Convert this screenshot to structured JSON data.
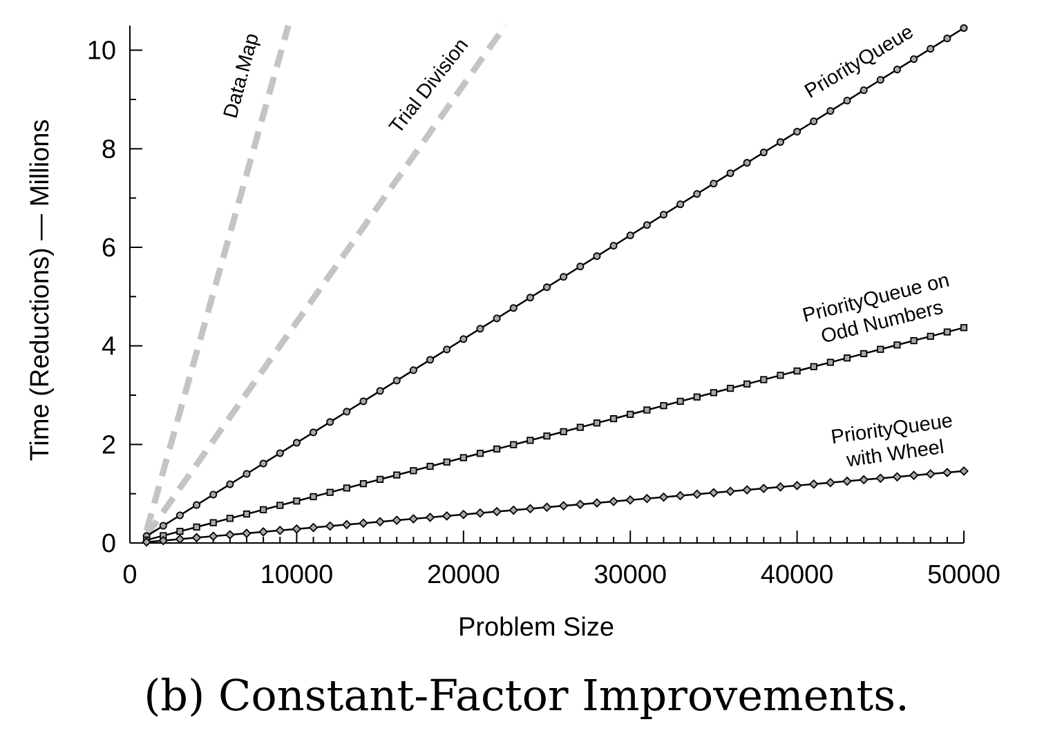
{
  "chart_data": {
    "type": "line",
    "xlabel": "Problem Size",
    "ylabel": "Time (Reductions) — Millions",
    "xlim": [
      0,
      50000
    ],
    "ylim": [
      0,
      10.5
    ],
    "x_ticks": [
      0,
      10000,
      20000,
      30000,
      40000,
      50000
    ],
    "x_tick_labels": [
      "0",
      "10000",
      "20000",
      "30000",
      "40000",
      "50000"
    ],
    "y_ticks": [
      0,
      2,
      4,
      6,
      8,
      10
    ],
    "y_tick_labels": [
      "0",
      "2",
      "4",
      "6",
      "8",
      "10"
    ],
    "grid": false,
    "legend": "none (inline labels)",
    "series": [
      {
        "name": "Data.Map",
        "style": "dashed",
        "color": "#c4c4c4",
        "x": [
          1000,
          9500
        ],
        "y": [
          0.25,
          10.5
        ]
      },
      {
        "name": "Trial Division",
        "style": "dashed",
        "color": "#c4c4c4",
        "x": [
          1000,
          22500
        ],
        "y": [
          0.15,
          10.5
        ]
      },
      {
        "name": "PriorityQueue",
        "style": "solid",
        "marker": "circle",
        "color": "#000000",
        "x_start": 1000,
        "x_step": 1000,
        "x_end": 50000,
        "y_start": 0.14,
        "y_end": 10.45
      },
      {
        "name": "PriorityQueue on Odd Numbers",
        "name_lines": [
          "PriorityQueue on",
          "Odd Numbers"
        ],
        "style": "solid",
        "marker": "square",
        "color": "#000000",
        "x_start": 1000,
        "x_step": 1000,
        "x_end": 50000,
        "y_start": 0.06,
        "y_end": 4.37
      },
      {
        "name": "PriorityQueue with Wheel",
        "name_lines": [
          "PriorityQueue",
          "with Wheel"
        ],
        "style": "solid",
        "marker": "diamond",
        "color": "#000000",
        "x_start": 1000,
        "x_step": 1000,
        "x_end": 50000,
        "y_start": 0.02,
        "y_end": 1.46
      }
    ]
  },
  "caption": "(b) Constant-Factor Improvements."
}
